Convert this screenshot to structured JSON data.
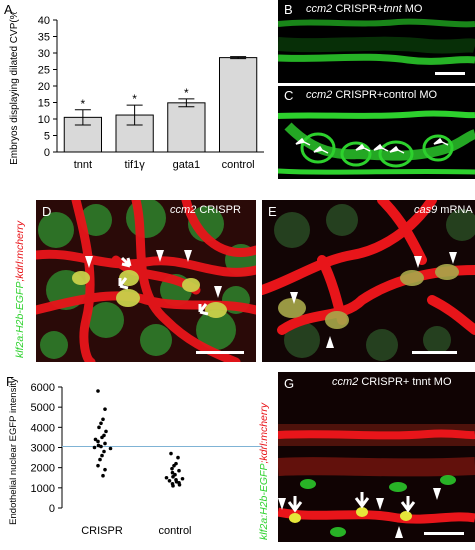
{
  "panels": {
    "A": "A",
    "B": "B",
    "C": "C",
    "D": "D",
    "E": "E",
    "F": "F",
    "G": "G"
  },
  "captions": {
    "B_gene": "ccm2",
    "B_rest1": " CRISPR+",
    "B_mo": "tnnt",
    "B_rest2": " MO",
    "C_gene": "ccm2",
    "C_rest": " CRISPR+control MO",
    "D_gene": "ccm2",
    "D_rest": " CRISPR",
    "E_gene": "cas9",
    "E_rest": " mRNA",
    "G_gene": "ccm2",
    "G_rest": " CRISPR+ tnnt MO"
  },
  "side_labels": {
    "D_part1": "klf2a:H2b-EGFP",
    "D_part2": ";kdrl:mcherry",
    "G_part1": "klf2a:H2b-EGFP",
    "G_part2": ";kdrl:mcherry"
  },
  "colors": {
    "green": "#2dd12d",
    "red": "#e8151a",
    "bar_fill": "#d9d9d9",
    "line_blue": "#7fb3d5"
  },
  "chart_data": [
    {
      "type": "bar",
      "categories": [
        "tnnt",
        "tif1γ",
        "gata1",
        "control"
      ],
      "values": [
        10.5,
        11.2,
        14.9,
        28.6
      ],
      "errors": [
        2.3,
        3.0,
        1.2,
        0.3
      ],
      "significance": [
        "*",
        "*",
        "*",
        ""
      ],
      "ylabel": "Embryos displaying dilated CVP(%)",
      "ylim": [
        0,
        40
      ],
      "yticks": [
        0,
        5,
        10,
        15,
        20,
        25,
        30,
        35,
        40
      ],
      "grid": false
    },
    {
      "type": "scatter",
      "categories": [
        "CRISPR",
        "control"
      ],
      "series": [
        {
          "values": [
            5800,
            4900,
            4400,
            4200,
            4000,
            3800,
            3600,
            3500,
            3400,
            3300,
            3200,
            3100,
            3050,
            3000,
            2950,
            2800,
            2600,
            2400,
            2100,
            1900,
            1600
          ]
        },
        {
          "values": [
            2700,
            2500,
            2200,
            2100,
            1950,
            1850,
            1750,
            1650,
            1550,
            1500,
            1450,
            1400,
            1350,
            1300,
            1250,
            1200,
            1150,
            1100
          ]
        }
      ],
      "reference_line": 3050,
      "ylabel": "Endothelial nuclear EGFP intensity",
      "ylim": [
        0,
        6000
      ],
      "yticks": [
        0,
        1000,
        2000,
        3000,
        4000,
        5000,
        6000
      ],
      "grid": false
    }
  ]
}
